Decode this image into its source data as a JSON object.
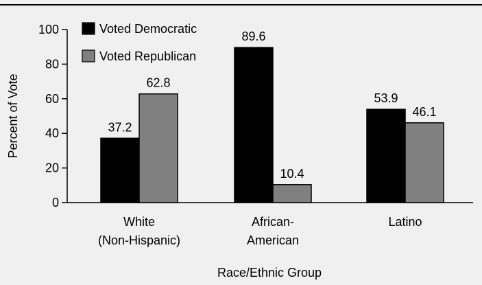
{
  "chart_data": {
    "type": "bar",
    "categories": [
      [
        "White",
        "(Non-Hispanic)"
      ],
      [
        "African-",
        "American"
      ],
      [
        "Latino"
      ]
    ],
    "series": [
      {
        "name": "Voted Democratic",
        "values": [
          37.2,
          89.6,
          53.9
        ],
        "color": "#000000"
      },
      {
        "name": "Voted Republican",
        "values": [
          62.8,
          10.4,
          46.1
        ],
        "color": "#808080"
      }
    ],
    "data_labels": [
      [
        "37.2",
        "89.6",
        "53.9"
      ],
      [
        "62.8",
        "10.4",
        "46.1"
      ]
    ],
    "title": "",
    "xlabel": "Race/Ethnic Group",
    "ylabel": "Percent of Vote",
    "ylim": [
      0,
      100
    ],
    "yticks": [
      0,
      20,
      40,
      60,
      80,
      100
    ],
    "legend_position": "top-left",
    "grid": false,
    "background_color": "#f0f0f0",
    "top_rule": true
  }
}
